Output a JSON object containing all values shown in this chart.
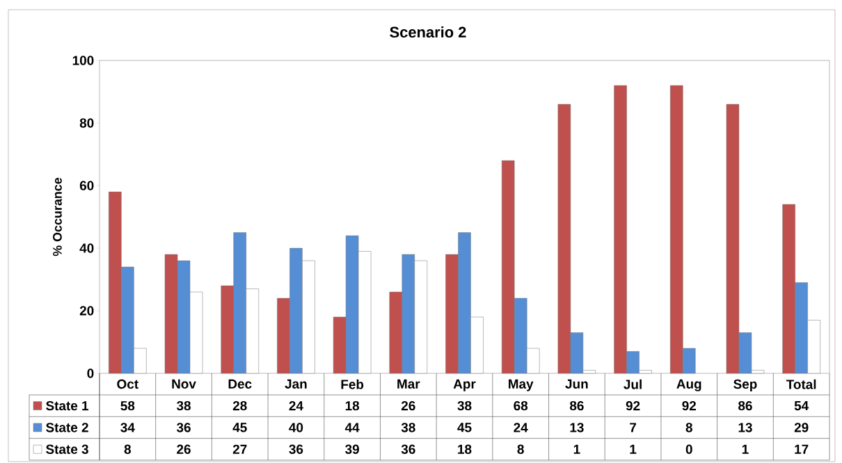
{
  "chart_data": {
    "type": "bar",
    "title": "Scenario 2",
    "ylabel": "% Occurance",
    "categories": [
      "Oct",
      "Nov",
      "Dec",
      "Jan",
      "Feb",
      "Mar",
      "Apr",
      "May",
      "Jun",
      "Jul",
      "Aug",
      "Sep",
      "Total"
    ],
    "series": [
      {
        "name": "State 1",
        "color": "#c0504d",
        "values": [
          58,
          38,
          28,
          24,
          18,
          26,
          38,
          68,
          86,
          92,
          92,
          86,
          54
        ]
      },
      {
        "name": "State 2",
        "color": "#558ed5",
        "values": [
          34,
          36,
          45,
          40,
          44,
          38,
          45,
          24,
          13,
          7,
          8,
          13,
          29
        ]
      },
      {
        "name": "State 3",
        "color": "#ffffff",
        "values": [
          8,
          26,
          27,
          36,
          39,
          36,
          18,
          8,
          1,
          1,
          0,
          1,
          17
        ]
      }
    ],
    "ylim": [
      0,
      100
    ],
    "yticks": [
      0,
      20,
      40,
      60,
      80,
      100
    ],
    "grid": false,
    "legend": "bottom",
    "data_labels": true
  }
}
